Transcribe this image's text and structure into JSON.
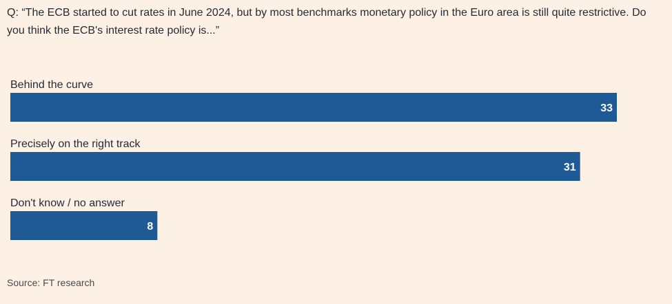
{
  "question": "Q: “The ECB started to cut rates in June 2024, but by most benchmarks monetary policy in the Euro area is still quite restrictive. Do you think the ECB's interest rate policy is...”",
  "source": "Source: FT research",
  "colors": {
    "background": "#fdf1e6",
    "bar": "#1f5a96",
    "value_label": "#ffffff",
    "category_label": "#262a33"
  },
  "chart_data": {
    "type": "bar",
    "orientation": "horizontal",
    "categories": [
      "Behind the curve",
      "Precisely on the right track",
      "Don't know / no answer"
    ],
    "values": [
      33,
      31,
      8
    ],
    "title": "",
    "xlabel": "",
    "ylabel": "",
    "xlim": [
      0,
      33
    ],
    "grid": false,
    "legend": "none"
  }
}
